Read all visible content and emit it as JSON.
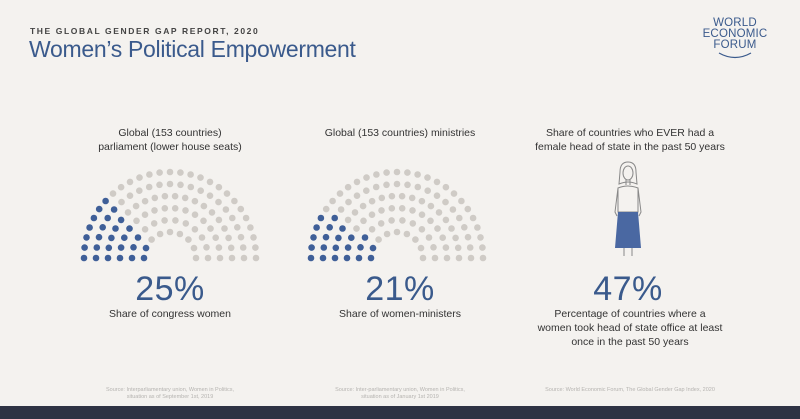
{
  "header": {
    "kicker": "THE GLOBAL GENDER GAP REPORT, 2020",
    "title": "Women’s Political Empowerment"
  },
  "logo": {
    "line1": "WORLD",
    "line2": "ECONOMIC",
    "line3": "FORUM"
  },
  "colors": {
    "accent": "#3a5a8c",
    "dot_grey": "#cfcbc6",
    "footer": "#2e3344"
  },
  "panels": [
    {
      "heading_line1": "Global (153 countries)",
      "heading_line2": "parliament (lower house seats)",
      "percent": "25%",
      "caption": "Share of congress women",
      "share": 0.25,
      "source_line1": "Source: Interparliamentary union, Women in Politics,",
      "source_line2": "situation as of September 1st, 2019"
    },
    {
      "heading_line1": "Global (153 countries) ministries",
      "heading_line2": "",
      "percent": "21%",
      "caption": "Share of women-ministers",
      "share": 0.21,
      "source_line1": "Source: Inter-parliamentary union, Women in Politics,",
      "source_line2": "situation as of January 1st 2019"
    },
    {
      "heading_line1": "Share of countries who EVER had a",
      "heading_line2": "female head of state in the past 50 years",
      "percent": "47%",
      "caption_line1": "Percentage of countries where a",
      "caption_line2": "women took head of state office at least",
      "caption_line3": "once in the past 50 years",
      "share": 0.47,
      "icon": "woman-figure-icon",
      "source_line1": "Source: World Economic Forum, The Global Gender Gap Index, 2020"
    }
  ]
}
